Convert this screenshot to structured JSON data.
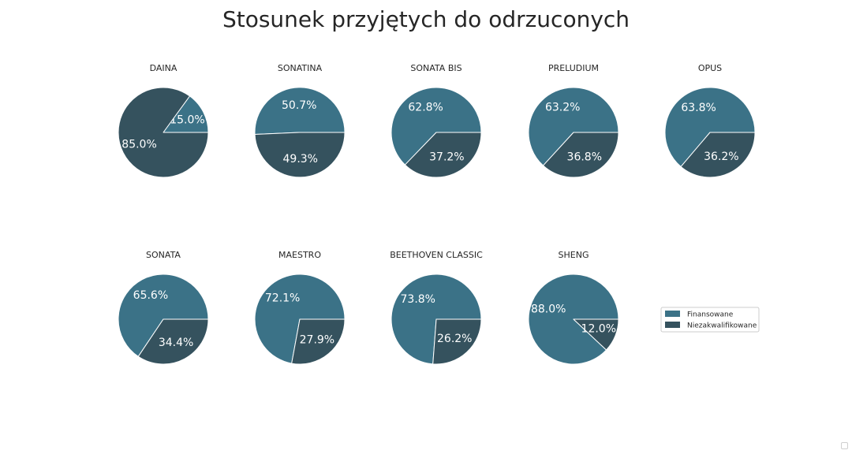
{
  "chart_data": {
    "type": "pie",
    "title": "Stosunek przyjętych do odrzuconych",
    "legend": {
      "placement": "right",
      "entries": [
        {
          "name": "Finansowane",
          "color": "#3b7287"
        },
        {
          "name": "Niezakwalifikowane",
          "color": "#35525e"
        }
      ]
    },
    "charts": [
      {
        "title": "DAINA",
        "slices": [
          {
            "name": "Finansowane",
            "value": 15.0,
            "label": "15.0%"
          },
          {
            "name": "Niezakwalifikowane",
            "value": 85.0,
            "label": "85.0%"
          }
        ]
      },
      {
        "title": "SONATINA",
        "slices": [
          {
            "name": "Finansowane",
            "value": 50.7,
            "label": "50.7%"
          },
          {
            "name": "Niezakwalifikowane",
            "value": 49.3,
            "label": "49.3%"
          }
        ]
      },
      {
        "title": "SONATA BIS",
        "slices": [
          {
            "name": "Finansowane",
            "value": 62.8,
            "label": "62.8%"
          },
          {
            "name": "Niezakwalifikowane",
            "value": 37.2,
            "label": "37.2%"
          }
        ]
      },
      {
        "title": "PRELUDIUM",
        "slices": [
          {
            "name": "Finansowane",
            "value": 63.2,
            "label": "63.2%"
          },
          {
            "name": "Niezakwalifikowane",
            "value": 36.8,
            "label": "36.8%"
          }
        ]
      },
      {
        "title": "OPUS",
        "slices": [
          {
            "name": "Finansowane",
            "value": 63.8,
            "label": "63.8%"
          },
          {
            "name": "Niezakwalifikowane",
            "value": 36.2,
            "label": "36.2%"
          }
        ]
      },
      {
        "title": "SONATA",
        "slices": [
          {
            "name": "Finansowane",
            "value": 65.6,
            "label": "65.6%"
          },
          {
            "name": "Niezakwalifikowane",
            "value": 34.4,
            "label": "34.4%"
          }
        ]
      },
      {
        "title": "MAESTRO",
        "slices": [
          {
            "name": "Finansowane",
            "value": 72.1,
            "label": "72.1%"
          },
          {
            "name": "Niezakwalifikowane",
            "value": 27.9,
            "label": "27.9%"
          }
        ]
      },
      {
        "title": "BEETHOVEN CLASSIC",
        "slices": [
          {
            "name": "Finansowane",
            "value": 73.8,
            "label": "73.8%"
          },
          {
            "name": "Niezakwalifikowane",
            "value": 26.2,
            "label": "26.2%"
          }
        ]
      },
      {
        "title": "SHENG",
        "slices": [
          {
            "name": "Finansowane",
            "value": 88.0,
            "label": "88.0%"
          },
          {
            "name": "Niezakwalifikowane",
            "value": 12.0,
            "label": "12.0%"
          }
        ]
      }
    ]
  }
}
